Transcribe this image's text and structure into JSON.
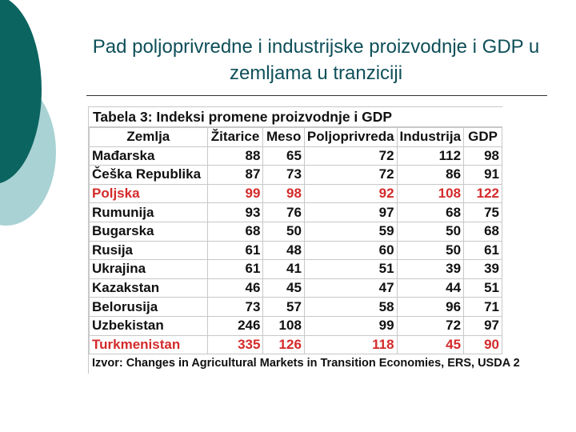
{
  "title": "Pad poljoprivredne i industrijske proizvodnje i GDP u zemljama u tranziciji",
  "table": {
    "caption": "Tabela 3: Indeksi promene proizvodnje i GDP",
    "headers": [
      "Zemlja",
      "Žitarice",
      "Meso",
      "Poljoprivreda",
      "Industrija",
      "GDP"
    ],
    "rows": [
      {
        "cells": [
          "Mađarska",
          "88",
          "65",
          "72",
          "112",
          "98"
        ],
        "highlight": false
      },
      {
        "cells": [
          "Češka Republika",
          "87",
          "73",
          "72",
          "86",
          "91"
        ],
        "highlight": false
      },
      {
        "cells": [
          "Poljska",
          "99",
          "98",
          "92",
          "108",
          "122"
        ],
        "highlight": true
      },
      {
        "cells": [
          "Rumunija",
          "93",
          "76",
          "97",
          "68",
          "75"
        ],
        "highlight": false
      },
      {
        "cells": [
          "Bugarska",
          "68",
          "50",
          "59",
          "50",
          "68"
        ],
        "highlight": false
      },
      {
        "cells": [
          "Rusija",
          "61",
          "48",
          "60",
          "50",
          "61"
        ],
        "highlight": false
      },
      {
        "cells": [
          "Ukrajina",
          "61",
          "41",
          "51",
          "39",
          "39"
        ],
        "highlight": false
      },
      {
        "cells": [
          "Kazakstan",
          "46",
          "45",
          "47",
          "44",
          "51"
        ],
        "highlight": false
      },
      {
        "cells": [
          "Belorusija",
          "73",
          "57",
          "58",
          "96",
          "71"
        ],
        "highlight": false
      },
      {
        "cells": [
          "Uzbekistan",
          "246",
          "108",
          "99",
          "72",
          "97"
        ],
        "highlight": false
      },
      {
        "cells": [
          "Turkmenistan",
          "335",
          "126",
          "118",
          "45",
          "90"
        ],
        "highlight": true
      }
    ],
    "source": "Izvor: Changes in Agricultural Markets in Transition Economies, ERS, USDA 2"
  },
  "colors": {
    "title": "#0e4f59",
    "highlight": "#d42a2a",
    "deco_dark": "#0b6460",
    "deco_light": "#a9d2d4"
  }
}
